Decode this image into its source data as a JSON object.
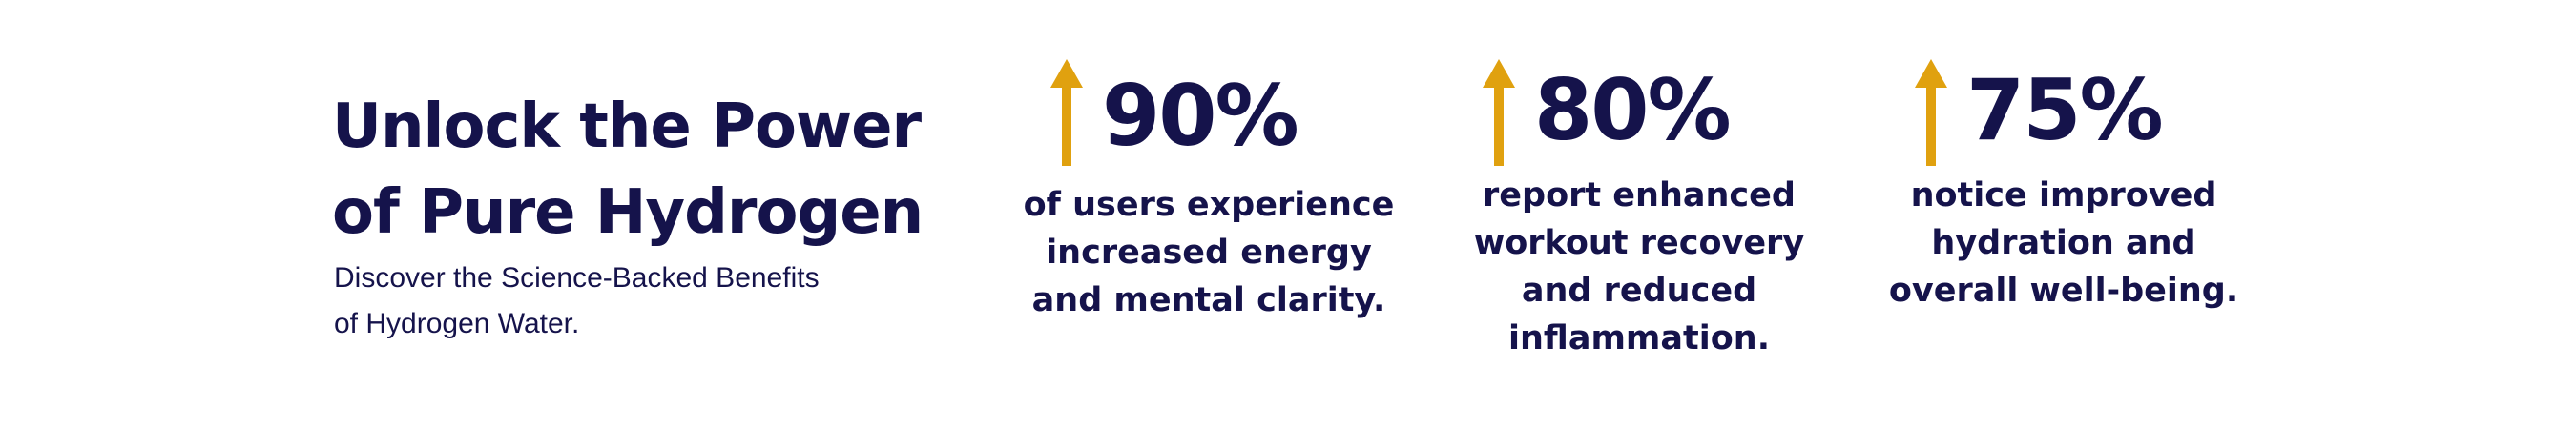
{
  "header": {
    "title": [
      "Unlock the Power",
      "of Pure Hydrogen"
    ],
    "subtitle": [
      "Discover the Science-Backed Benefits",
      "of Hydrogen Water."
    ]
  },
  "stats": [
    {
      "value": "90%",
      "description": [
        "of users experience",
        "increased energy",
        "and mental clarity."
      ]
    },
    {
      "value": "80%",
      "description": [
        "report enhanced",
        "workout recovery",
        "and reduced",
        "inflammation."
      ]
    },
    {
      "value": "75%",
      "description": [
        "notice improved",
        "hydration and",
        "overall well-being."
      ]
    }
  ]
}
